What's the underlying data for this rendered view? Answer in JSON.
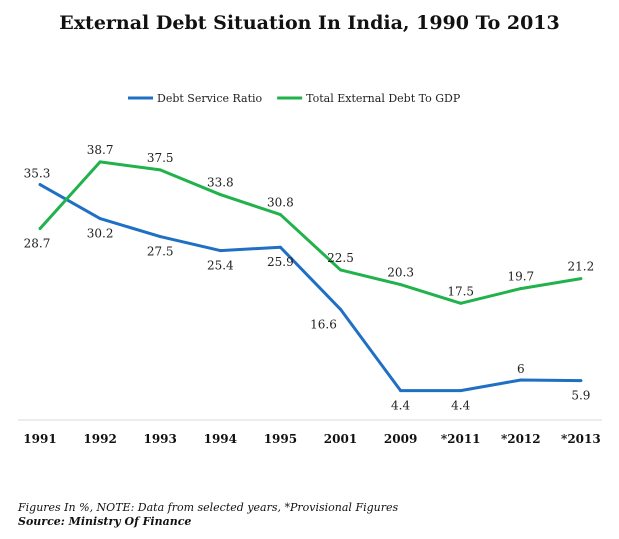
{
  "chart_data": {
    "type": "line",
    "title": "External Debt Situation In India, 1990 To 2013",
    "categories": [
      "1991",
      "1992",
      "1993",
      "1994",
      "1995",
      "2001",
      "2009",
      "*2011",
      "*2012",
      "*2013"
    ],
    "series": [
      {
        "name": "Debt Service Ratio",
        "color": "#1f6fc4",
        "values": [
          35.3,
          30.2,
          27.5,
          25.4,
          25.9,
          16.6,
          4.4,
          4.4,
          6,
          5.9
        ]
      },
      {
        "name": "Total External Debt To GDP",
        "color": "#21b24b",
        "values": [
          28.7,
          38.7,
          37.5,
          33.8,
          30.8,
          22.5,
          20.3,
          17.5,
          19.7,
          21.2
        ]
      }
    ],
    "xlabel": "",
    "ylabel": "",
    "ylim": [
      0,
      40
    ],
    "grid": false,
    "legend": "top"
  },
  "footer": {
    "note": "Figures In %, NOTE: Data from selected years, *Provisional  Figures",
    "source": "Source: Ministry Of Finance"
  }
}
